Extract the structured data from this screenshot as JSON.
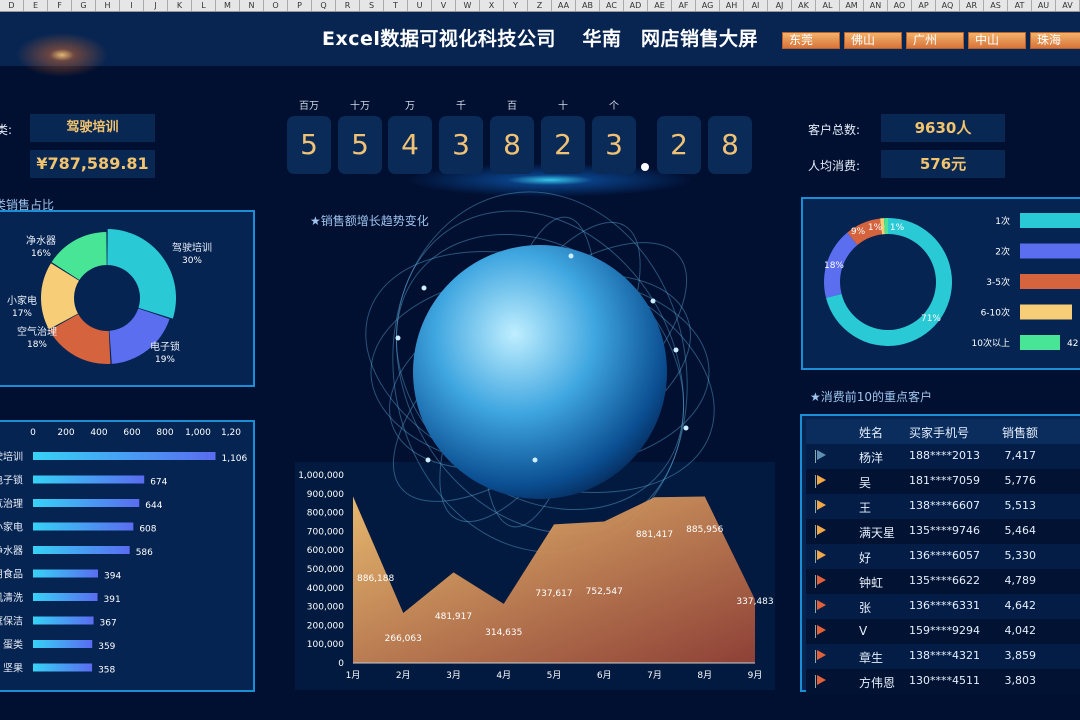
{
  "excel_columns": [
    "D",
    "E",
    "F",
    "G",
    "H",
    "I",
    "J",
    "K",
    "L",
    "M",
    "N",
    "O",
    "P",
    "Q",
    "R",
    "S",
    "T",
    "U",
    "V",
    "W",
    "X",
    "Y",
    "Z",
    "AA",
    "AB",
    "AC",
    "AD",
    "AE",
    "AF",
    "AG",
    "AH",
    "AI",
    "AJ",
    "AK",
    "AL",
    "AM",
    "AN",
    "AO",
    "AP",
    "AQ",
    "AR",
    "AS",
    "AT",
    "AU",
    "AV"
  ],
  "header": {
    "title": "Excel数据可视化科技公司　 华南　网店销售大屏",
    "cities": [
      "东莞",
      "佛山",
      "广州",
      "中山",
      "珠海"
    ]
  },
  "left_kpi": {
    "category_label": "类:",
    "category_value": "驾驶培训",
    "amount": "¥787,589.81"
  },
  "counter": {
    "units": [
      "百万",
      "十万",
      "万",
      "千",
      "百",
      "十",
      "个"
    ],
    "digits": [
      "5",
      "5",
      "4",
      "3",
      "8",
      "2",
      "3"
    ],
    "decimals": [
      "2",
      "8"
    ]
  },
  "right_kpi": {
    "customers_label": "客户总数:",
    "customers_value": "9630人",
    "avg_label": "人均消费:",
    "avg_value": "576元"
  },
  "colors": {
    "cyan": "#2ac9d6",
    "blue": "#5b6ef0",
    "orange": "#d5633e",
    "yellow": "#f8cd78",
    "green": "#48e597"
  },
  "chart_data": [
    {
      "type": "pie",
      "title": "类销售占比",
      "labels": [
        "驾驶培训",
        "电子锁",
        "空气治理",
        "小家电",
        "净水器"
      ],
      "values": [
        30,
        19,
        18,
        17,
        16
      ],
      "value_labels": [
        "30%",
        "19%",
        "18%",
        "17%",
        "16%"
      ]
    },
    {
      "type": "bar",
      "orientation": "horizontal",
      "categories": [
        "驶培训",
        "电子锁",
        "气治理",
        "小家电",
        "净水器",
        "用食品",
        "机清洗",
        "庭保洁",
        "蛋类",
        "坚果"
      ],
      "values": [
        1106,
        674,
        644,
        608,
        586,
        394,
        391,
        367,
        359,
        358
      ],
      "value_labels": [
        "1,106",
        "674",
        "644",
        "608",
        "586",
        "394",
        "391",
        "367",
        "359",
        "358"
      ],
      "xlim": [
        0,
        1200
      ],
      "xticks": [
        "0",
        "200",
        "400",
        "600",
        "800",
        "1,000",
        "1,20"
      ]
    },
    {
      "type": "area",
      "title": "★销售额增长趋势变化",
      "categories": [
        "1月",
        "2月",
        "3月",
        "4月",
        "5月",
        "6月",
        "7月",
        "8月",
        "9月"
      ],
      "values": [
        886188,
        266063,
        481917,
        314635,
        737617,
        752547,
        881417,
        885956,
        337483
      ],
      "value_labels": [
        "886,188",
        "266,063",
        "481,917",
        "314,635",
        "737,617",
        "752,547",
        "881,417",
        "885,956",
        "337,483"
      ],
      "ylim": [
        0,
        1000000
      ],
      "yticks": [
        "0",
        "100,000",
        "200,000",
        "300,000",
        "400,000",
        "500,000",
        "600,000",
        "700,000",
        "800,000",
        "900,000",
        "1,000,000"
      ]
    },
    {
      "type": "pie",
      "labels": [
        "1次",
        "2次",
        "3-5次",
        "6-10次",
        "10次以上"
      ],
      "values": [
        71,
        18,
        9,
        1,
        1
      ],
      "value_labels": [
        "71%",
        "18%",
        "9%",
        "1%",
        "1%"
      ],
      "legend_values": [
        "",
        "",
        "",
        "",
        "42"
      ]
    }
  ],
  "table": {
    "title": "★消费前10的重点客户",
    "headers": [
      "姓名",
      "买家手机号",
      "销售额"
    ],
    "rows": [
      {
        "name": "杨洋",
        "phone": "188****2013",
        "sales": "7,417",
        "flag": "#5f8fb0"
      },
      {
        "name": "吴",
        "phone": "181****7059",
        "sales": "5,776",
        "flag": "#f0a848"
      },
      {
        "name": "王",
        "phone": "138****6607",
        "sales": "5,513",
        "flag": "#f0a848"
      },
      {
        "name": "满天星",
        "phone": "135****9746",
        "sales": "5,464",
        "flag": "#f0a848"
      },
      {
        "name": "好",
        "phone": "136****6057",
        "sales": "5,330",
        "flag": "#f0a848"
      },
      {
        "name": "钟虹",
        "phone": "135****6622",
        "sales": "4,789",
        "flag": "#e0613a"
      },
      {
        "name": "张",
        "phone": "136****6331",
        "sales": "4,642",
        "flag": "#e0613a"
      },
      {
        "name": "V",
        "phone": "159****9294",
        "sales": "4,042",
        "flag": "#e0613a"
      },
      {
        "name": "章生",
        "phone": "138****4321",
        "sales": "3,859",
        "flag": "#e0613a"
      },
      {
        "name": "方伟恩",
        "phone": "130****4511",
        "sales": "3,803",
        "flag": "#e0613a"
      }
    ]
  }
}
